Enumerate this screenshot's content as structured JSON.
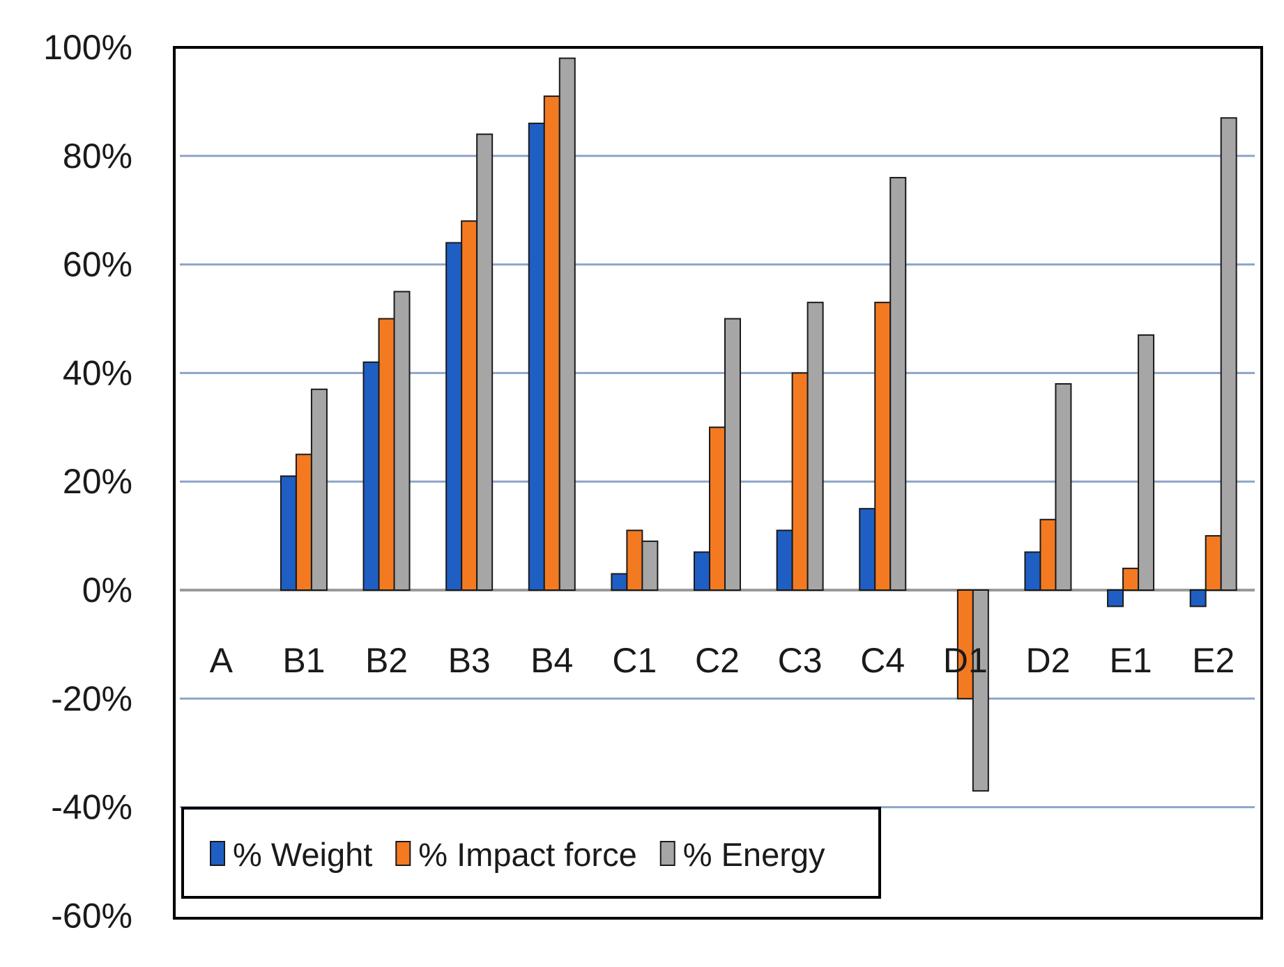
{
  "chart_data": {
    "type": "bar",
    "title": "",
    "xlabel": "",
    "ylabel": "",
    "ylim": [
      -60,
      100
    ],
    "yticks": [
      100,
      80,
      60,
      40,
      20,
      0,
      -20,
      -40,
      -60
    ],
    "ytick_labels": [
      "100%",
      "80%",
      "60%",
      "40%",
      "20%",
      "0%",
      "-20%",
      "-40%",
      "-60%"
    ],
    "categories": [
      "A",
      "B1",
      "B2",
      "B3",
      "B4",
      "C1",
      "C2",
      "C3",
      "C4",
      "D1",
      "D2",
      "E1",
      "E2"
    ],
    "series": [
      {
        "name": "% Weight",
        "color": "#1f5fc4",
        "values": [
          0,
          21,
          42,
          64,
          86,
          3,
          7,
          11,
          15,
          0,
          7,
          -3,
          -3
        ]
      },
      {
        "name": "% Impact force",
        "color": "#f47a21",
        "values": [
          0,
          25,
          50,
          68,
          91,
          11,
          30,
          40,
          53,
          -20,
          13,
          4,
          10
        ]
      },
      {
        "name": "% Energy",
        "color": "#a6a6a6",
        "values": [
          0,
          37,
          55,
          84,
          98,
          9,
          50,
          53,
          76,
          -37,
          38,
          47,
          87
        ]
      }
    ],
    "legend_position": "bottom-left",
    "grid": true
  }
}
